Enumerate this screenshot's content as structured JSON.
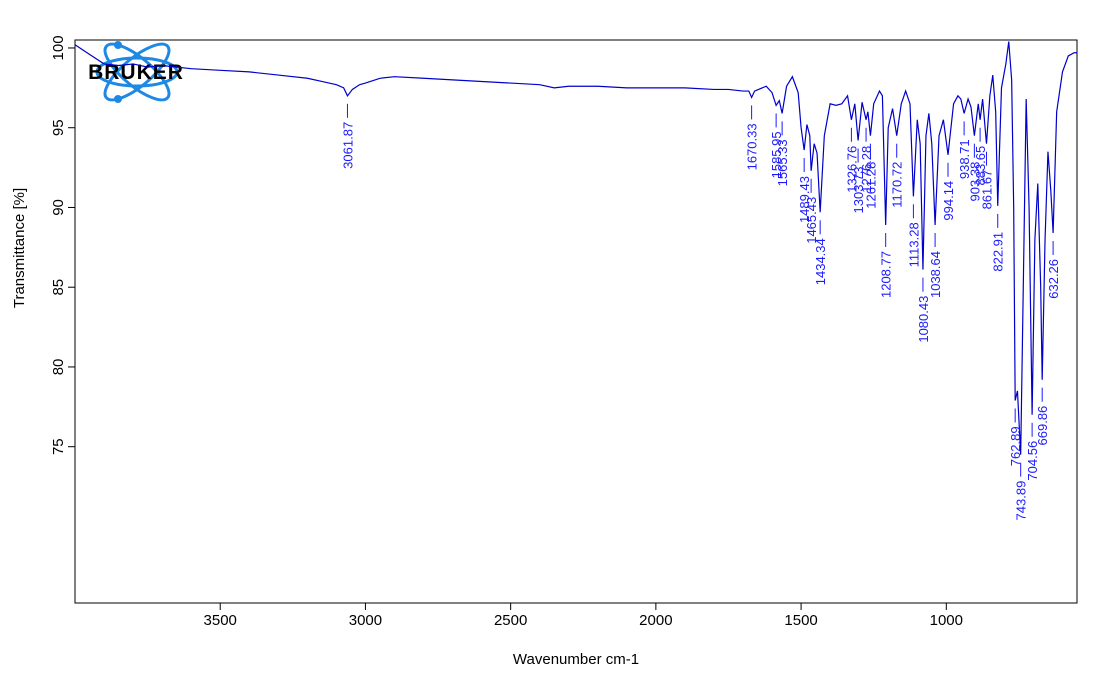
{
  "chart_data": {
    "type": "line",
    "logo": "BRUKER",
    "x_label": "Wavenumber cm-1",
    "y_label": "Transmittance [%]",
    "xlim": [
      4000,
      550
    ],
    "ylim": [
      65.2,
      100.5
    ],
    "xticks": [
      3500,
      3000,
      2500,
      2000,
      1500,
      1000
    ],
    "yticks": [
      75,
      80,
      85,
      90,
      95,
      100
    ],
    "color": "#0000cc",
    "peak_color": "#1a1aff",
    "x": [
      4000,
      3950,
      3900,
      3850,
      3800,
      3750,
      3700,
      3600,
      3500,
      3400,
      3300,
      3200,
      3150,
      3100,
      3075,
      3061.87,
      3045,
      3020,
      3000,
      2950,
      2900,
      2800,
      2700,
      2600,
      2500,
      2400,
      2350,
      2300,
      2200,
      2100,
      2000,
      1900,
      1800,
      1750,
      1700,
      1680,
      1670.33,
      1660,
      1620,
      1600,
      1585.95,
      1575,
      1565.33,
      1550,
      1530,
      1510,
      1500,
      1489.43,
      1480,
      1470,
      1465.43,
      1455,
      1445,
      1434.34,
      1420,
      1400,
      1380,
      1360,
      1340,
      1326.76,
      1315,
      1303.73,
      1290,
      1276.28,
      1270,
      1261.28,
      1250,
      1230,
      1220,
      1208.77,
      1200,
      1185,
      1170.72,
      1155,
      1140,
      1125,
      1113.28,
      1100,
      1090,
      1080.43,
      1070,
      1060,
      1050,
      1038.64,
      1025,
      1010,
      994.14,
      975,
      960,
      950,
      938.71,
      925,
      915,
      903.38,
      890,
      883.65,
      875,
      861.67,
      850,
      840,
      830,
      822.91,
      810,
      795,
      785,
      775,
      768,
      762.89,
      755,
      743.89,
      735,
      725,
      715,
      704.56,
      695,
      685,
      675,
      669.86,
      660,
      650,
      640,
      632.26,
      620,
      600,
      580,
      560,
      550
    ],
    "values": [
      100.2,
      99.6,
      99.0,
      98.9,
      99.0,
      98.8,
      98.9,
      98.7,
      98.6,
      98.5,
      98.3,
      98.1,
      97.9,
      97.7,
      97.5,
      97.0,
      97.4,
      97.7,
      97.8,
      98.1,
      98.2,
      98.1,
      98.0,
      97.9,
      97.8,
      97.7,
      97.5,
      97.6,
      97.6,
      97.5,
      97.5,
      97.5,
      97.4,
      97.4,
      97.3,
      97.3,
      96.9,
      97.3,
      97.6,
      97.2,
      96.4,
      96.7,
      95.9,
      97.6,
      98.2,
      97.2,
      95.0,
      93.6,
      95.2,
      94.5,
      92.3,
      94.0,
      93.4,
      89.7,
      94.5,
      96.5,
      96.4,
      96.5,
      97.0,
      95.5,
      96.5,
      94.2,
      96.6,
      95.5,
      96.0,
      94.5,
      96.5,
      97.3,
      97.0,
      88.9,
      95.0,
      96.2,
      94.5,
      96.5,
      97.3,
      96.5,
      90.7,
      95.5,
      94.0,
      86.1,
      94.5,
      95.9,
      94.0,
      88.9,
      94.5,
      95.5,
      93.3,
      96.5,
      97.0,
      96.8,
      95.9,
      96.8,
      96.3,
      94.5,
      96.5,
      95.5,
      96.8,
      94.0,
      97.0,
      98.3,
      96.0,
      90.1,
      97.5,
      99.0,
      100.4,
      98.0,
      90.0,
      77.9,
      78.5,
      74.5,
      85,
      96.8,
      90,
      77.0,
      88,
      91.5,
      85,
      79.2,
      88,
      93.5,
      91,
      88.4,
      96,
      98.5,
      99.5,
      99.7,
      99.7
    ],
    "peaks": [
      3061.87,
      1670.33,
      1585.95,
      1565.33,
      1489.43,
      1465.43,
      1434.34,
      1326.76,
      1303.73,
      1276.28,
      1261.28,
      1208.77,
      1170.72,
      1113.28,
      1080.43,
      1038.64,
      994.14,
      938.71,
      903.38,
      883.65,
      861.67,
      822.91,
      762.89,
      743.89,
      704.56,
      669.86,
      632.26
    ]
  }
}
